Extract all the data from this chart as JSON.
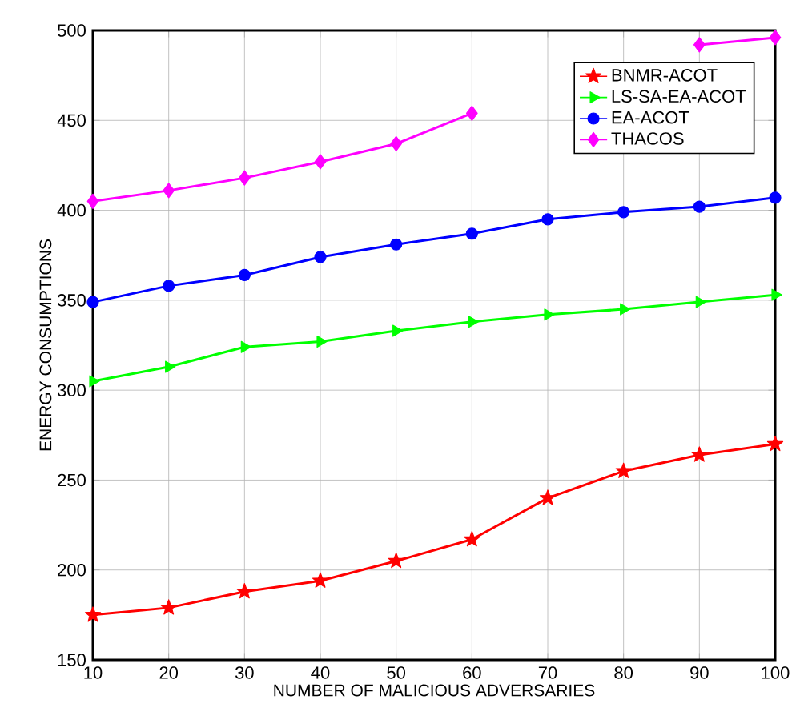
{
  "chart_data": {
    "type": "line",
    "xlabel": "NUMBER OF MALICIOUS ADVERSARIES",
    "ylabel": "ENERGY CONSUMPTIONS",
    "x": [
      10,
      20,
      30,
      40,
      50,
      60,
      70,
      80,
      90,
      100
    ],
    "series": [
      {
        "name": "BNMR-ACOT",
        "color": "#ff0000",
        "marker": "star",
        "values": [
          175,
          179,
          188,
          194,
          205,
          217,
          240,
          255,
          264,
          270
        ]
      },
      {
        "name": "LS-SA-EA-ACOT",
        "color": "#00ff00",
        "marker": "triangle",
        "values": [
          305,
          313,
          324,
          327,
          333,
          338,
          342,
          345,
          349,
          353
        ]
      },
      {
        "name": "EA-ACOT",
        "color": "#0000ff",
        "marker": "circle",
        "values": [
          349,
          358,
          364,
          374,
          381,
          387,
          395,
          399,
          402,
          407
        ]
      },
      {
        "name": "THACOS",
        "color": "#ff00ff",
        "marker": "diamond",
        "values": [
          405,
          411,
          418,
          427,
          437,
          454,
          null,
          null,
          492,
          496
        ]
      }
    ],
    "xlim": [
      10,
      100
    ],
    "xticks": [
      10,
      20,
      30,
      40,
      50,
      60,
      70,
      80,
      90,
      100
    ],
    "ylim": [
      150,
      500
    ],
    "yticks": [
      150,
      200,
      250,
      300,
      350,
      400,
      450,
      500
    ],
    "grid": true,
    "legend": "top right",
    "line_style": "solid"
  }
}
